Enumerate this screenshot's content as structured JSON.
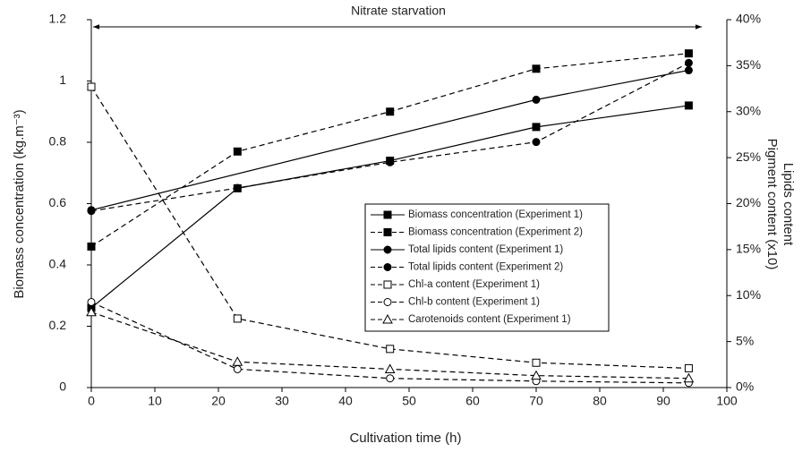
{
  "chart_data": {
    "type": "line",
    "annotation": "Nitrate starvation",
    "xlabel": "Cultivation time (h)",
    "ylabel": "Biomass concentration (kg.m⁻³)",
    "y2label": [
      "Lipids content",
      "Pigment content (x10)"
    ],
    "xlim": [
      0,
      100
    ],
    "xticks": [
      0,
      10,
      20,
      30,
      40,
      50,
      60,
      70,
      80,
      90,
      100
    ],
    "ylim": [
      0,
      1.2
    ],
    "yticks": [
      0,
      0.2,
      0.4,
      0.6,
      0.8,
      1,
      1.2
    ],
    "y2lim": [
      0,
      40
    ],
    "y2ticks": [
      {
        "value": 0,
        "label": "0%"
      },
      {
        "value": 5,
        "label": "5%"
      },
      {
        "value": 10,
        "label": "10%"
      },
      {
        "value": 15,
        "label": "15%"
      },
      {
        "value": 20,
        "label": "20%"
      },
      {
        "value": 25,
        "label": "25%"
      },
      {
        "value": 30,
        "label": "30%"
      },
      {
        "value": 35,
        "label": "35%"
      },
      {
        "value": 40,
        "label": "40%"
      }
    ],
    "grid": false,
    "series": [
      {
        "name": "Biomass concentration (Experiment 1)",
        "color": "#000",
        "dashed": false,
        "marker": "square",
        "filled": true,
        "x": [
          0,
          23,
          47,
          70,
          94
        ],
        "values": [
          0.26,
          0.65,
          0.74,
          0.85,
          0.92
        ]
      },
      {
        "name": "Biomass concentration (Experiment 2)",
        "color": "#000",
        "dashed": true,
        "marker": "square",
        "filled": true,
        "x": [
          0,
          23,
          47,
          70,
          94
        ],
        "values": [
          0.46,
          0.77,
          0.9,
          1.04,
          1.09
        ]
      },
      {
        "name": "Total lipids content (Experiment 1)",
        "color": "#000",
        "dashed": false,
        "marker": "circle",
        "filled": true,
        "axis": "y2",
        "x": [
          0,
          70,
          94
        ],
        "values": [
          19.3,
          31.3,
          34.5
        ]
      },
      {
        "name": "Total lipids content (Experiment 2)",
        "color": "#000",
        "dashed": true,
        "marker": "circle",
        "filled": true,
        "axis": "y2",
        "x": [
          0,
          23,
          47,
          70,
          94
        ],
        "values": [
          19.2,
          21.7,
          24.5,
          26.7,
          35.3
        ]
      },
      {
        "name": "Chl-a content (Experiment 1)",
        "color": "#000",
        "dashed": true,
        "marker": "square",
        "filled": false,
        "axis": "y2",
        "x": [
          0,
          23,
          47,
          70,
          94
        ],
        "values": [
          32.7,
          7.5,
          4.2,
          2.7,
          2.1
        ]
      },
      {
        "name": "Chl-b content (Experiment 1)",
        "color": "#000",
        "dashed": true,
        "marker": "circle",
        "filled": false,
        "axis": "y2",
        "x": [
          0,
          23,
          47,
          70,
          94
        ],
        "values": [
          9.3,
          2.0,
          1.0,
          0.7,
          0.5
        ]
      },
      {
        "name": "Carotenoids content (Experiment 1)",
        "color": "#000",
        "dashed": true,
        "marker": "triangle",
        "filled": false,
        "axis": "y2",
        "x": [
          0,
          23,
          47,
          70,
          94
        ],
        "values": [
          8.2,
          2.8,
          2.0,
          1.3,
          1.0
        ]
      }
    ]
  }
}
